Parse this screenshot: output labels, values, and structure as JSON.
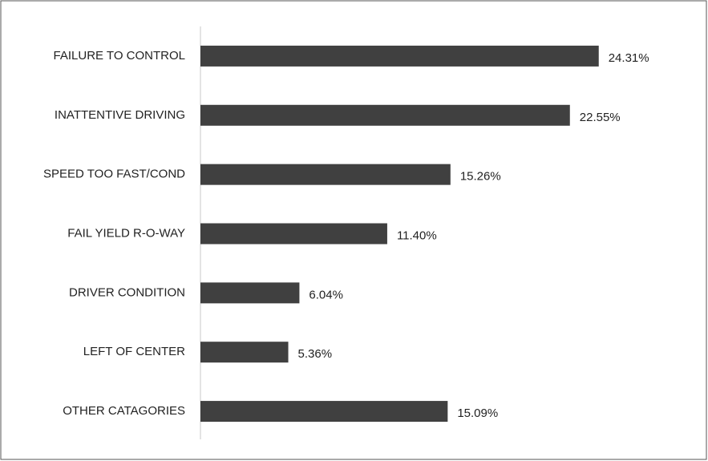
{
  "chart_data": {
    "type": "hbar",
    "categories": [
      "FAILURE TO CONTROL",
      "INATTENTIVE DRIVING",
      "SPEED TOO FAST/COND",
      "FAIL YIELD R-O-WAY",
      "DRIVER CONDITION",
      "LEFT OF CENTER",
      "OTHER CATAGORIES"
    ],
    "values": [
      24.31,
      22.55,
      15.26,
      11.4,
      6.04,
      5.36,
      15.09
    ],
    "value_labels": [
      "24.31%",
      "22.55%",
      "15.26%",
      "11.40%",
      "6.04%",
      "5.36%",
      "15.09%"
    ],
    "color": "#404040",
    "xlim": [
      0,
      30
    ]
  }
}
